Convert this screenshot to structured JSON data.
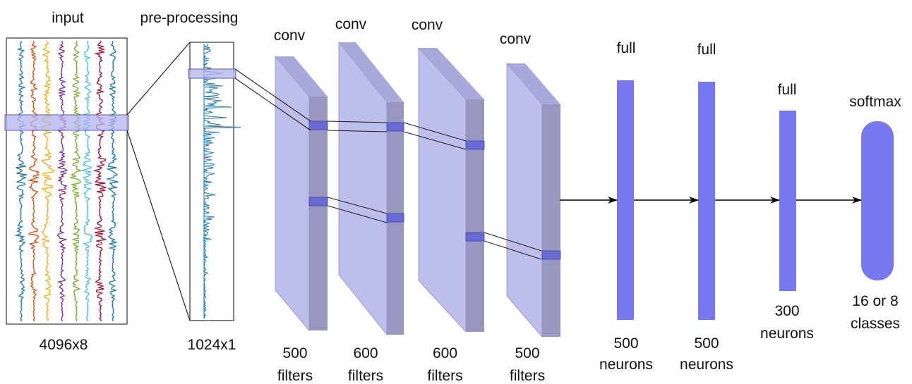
{
  "input": {
    "title": "input",
    "dims": "4096x8",
    "channel_colors": [
      "#1f77b4",
      "#d95319",
      "#edb120",
      "#7e2f8e",
      "#77ac30",
      "#4dbeee",
      "#a2142f",
      "#1f77b4"
    ]
  },
  "preprocessing": {
    "title": "pre-processing",
    "dims": "1024x1",
    "signal_color": "#1f77b4"
  },
  "conv_layers": [
    {
      "label": "conv",
      "count": "500",
      "unit": "filters"
    },
    {
      "label": "conv",
      "count": "600",
      "unit": "filters"
    },
    {
      "label": "conv",
      "count": "600",
      "unit": "filters"
    },
    {
      "label": "conv",
      "count": "500",
      "unit": "filters"
    }
  ],
  "full_layers": [
    {
      "label": "full",
      "count": "500",
      "unit": "neurons"
    },
    {
      "label": "full",
      "count": "500",
      "unit": "neurons"
    },
    {
      "label": "full",
      "count": "300",
      "unit": "neurons"
    }
  ],
  "softmax": {
    "label": "softmax",
    "count": "16 or 8",
    "unit": "classes"
  },
  "colors": {
    "box_face": "#b3b3e6",
    "box_side": "#8c8cb8",
    "box_top": "#9e9ed6",
    "highlight": "#6a6ad6",
    "neuron": "#7777f2",
    "arrow": "#000000"
  }
}
